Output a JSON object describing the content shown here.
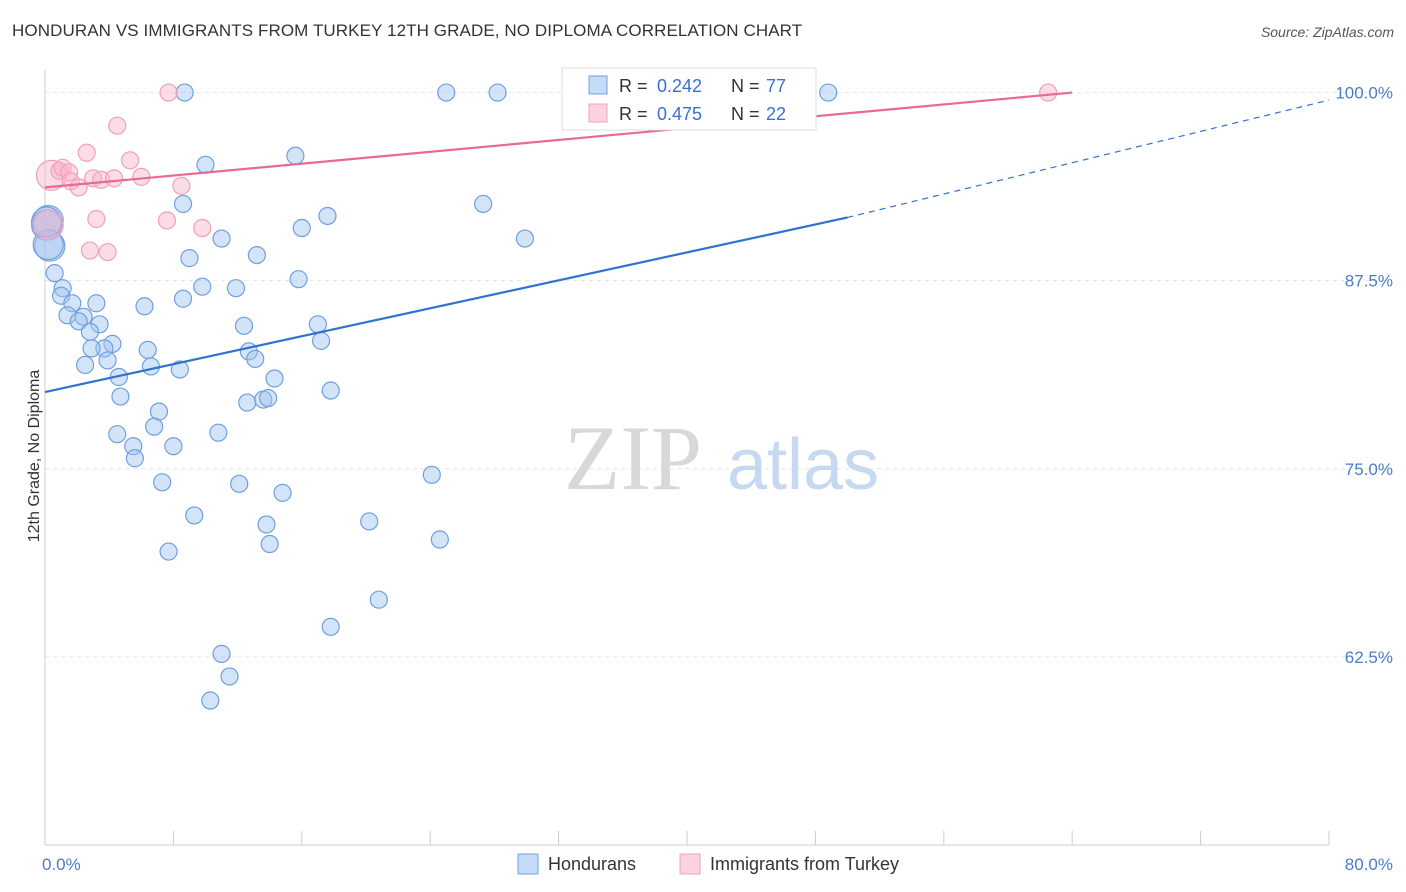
{
  "title": "HONDURAN VS IMMIGRANTS FROM TURKEY 12TH GRADE, NO DIPLOMA CORRELATION CHART",
  "source": "Source: ZipAtlas.com",
  "watermark": {
    "zip": "ZIP",
    "atlas": "atlas"
  },
  "colors": {
    "blue_fill": "rgba(160,195,240,0.45)",
    "blue_stroke": "#6f9fe0",
    "blue_line": "#2f72d0",
    "pink_fill": "rgba(248,180,200,0.45)",
    "pink_stroke": "#f0a0bc",
    "pink_line": "#e86a93",
    "tick_text": "#4a7cc9",
    "grid": "#e6e6e6"
  },
  "legend": {
    "r_label": "R =",
    "n_label": "N =",
    "rows": [
      {
        "r": "0.242",
        "n": "77",
        "series": "Hondurans"
      },
      {
        "r": "0.475",
        "n": "22",
        "series": "Immigrants from Turkey"
      }
    ]
  },
  "chart_data": {
    "type": "scatter",
    "title": "HONDURAN VS IMMIGRANTS FROM TURKEY 12TH GRADE, NO DIPLOMA CORRELATION CHART",
    "xlabel": "",
    "ylabel": "12th Grade, No Diploma",
    "xlim": [
      0,
      80
    ],
    "ylim": [
      50,
      101.5
    ],
    "x_tick_labels": [
      "0.0%",
      "80.0%"
    ],
    "y_ticks": [
      62.5,
      75.0,
      87.5,
      100.0
    ],
    "y_tick_labels": [
      "62.5%",
      "75.0%",
      "87.5%",
      "100.0%"
    ],
    "grid": true,
    "legend_position": "top-center",
    "series": [
      {
        "name": "Hondurans",
        "color": "#6f9fe0",
        "trend": {
          "x": [
            0,
            50
          ],
          "y": [
            80.1,
            91.7
          ],
          "dashed_to_x": 80,
          "dashed_y": 99.5
        },
        "points": [
          [
            0.2,
            91.5
          ],
          [
            0.3,
            89.8
          ],
          [
            0.6,
            88.0
          ],
          [
            1.1,
            87.0
          ],
          [
            1.0,
            86.5
          ],
          [
            1.7,
            86.0
          ],
          [
            3.2,
            86.0
          ],
          [
            6.2,
            85.8
          ],
          [
            1.4,
            85.2
          ],
          [
            2.4,
            85.1
          ],
          [
            2.1,
            84.8
          ],
          [
            3.4,
            84.6
          ],
          [
            2.8,
            84.1
          ],
          [
            4.2,
            83.3
          ],
          [
            3.7,
            83.0
          ],
          [
            2.9,
            83.0
          ],
          [
            6.4,
            82.9
          ],
          [
            3.9,
            82.2
          ],
          [
            2.5,
            81.9
          ],
          [
            6.6,
            81.8
          ],
          [
            8.4,
            81.6
          ],
          [
            4.6,
            81.1
          ],
          [
            4.7,
            79.8
          ],
          [
            7.1,
            78.8
          ],
          [
            6.8,
            77.8
          ],
          [
            4.5,
            77.3
          ],
          [
            5.5,
            76.5
          ],
          [
            8.0,
            76.5
          ],
          [
            5.6,
            75.7
          ],
          [
            7.3,
            74.1
          ],
          [
            9.3,
            71.9
          ],
          [
            7.7,
            69.5
          ],
          [
            8.7,
            100.0
          ],
          [
            25.0,
            100.0
          ],
          [
            28.2,
            100.0
          ],
          [
            41.8,
            100.0
          ],
          [
            48.8,
            100.0
          ],
          [
            10.0,
            95.2
          ],
          [
            15.6,
            95.8
          ],
          [
            8.6,
            92.6
          ],
          [
            11.0,
            90.3
          ],
          [
            9.0,
            89.0
          ],
          [
            9.8,
            87.1
          ],
          [
            8.6,
            86.3
          ],
          [
            13.2,
            89.2
          ],
          [
            11.9,
            87.0
          ],
          [
            15.8,
            87.6
          ],
          [
            17.6,
            91.8
          ],
          [
            16.0,
            91.0
          ],
          [
            12.4,
            84.5
          ],
          [
            17.0,
            84.6
          ],
          [
            17.2,
            83.5
          ],
          [
            12.7,
            82.8
          ],
          [
            13.1,
            82.3
          ],
          [
            14.3,
            81.0
          ],
          [
            17.8,
            80.2
          ],
          [
            12.6,
            79.4
          ],
          [
            13.6,
            79.6
          ],
          [
            13.9,
            79.7
          ],
          [
            10.8,
            77.4
          ],
          [
            12.1,
            74.0
          ],
          [
            14.8,
            73.4
          ],
          [
            13.8,
            71.3
          ],
          [
            14.0,
            70.0
          ],
          [
            20.2,
            71.5
          ],
          [
            24.1,
            74.6
          ],
          [
            24.6,
            70.3
          ],
          [
            27.3,
            92.6
          ],
          [
            29.9,
            90.3
          ],
          [
            20.8,
            66.3
          ],
          [
            17.8,
            64.5
          ],
          [
            11.0,
            62.7
          ],
          [
            11.5,
            61.2
          ],
          [
            10.3,
            59.6
          ],
          [
            0.1,
            91.2
          ],
          [
            0.2,
            89.9
          ],
          [
            0.1,
            91.4
          ]
        ]
      },
      {
        "name": "Immigrants from Turkey",
        "color": "#f0a0bc",
        "trend": {
          "x": [
            0,
            64
          ],
          "y": [
            93.7,
            100.0
          ]
        },
        "points": [
          [
            0.2,
            91.2
          ],
          [
            0.4,
            94.5
          ],
          [
            0.9,
            94.8
          ],
          [
            1.1,
            95.0
          ],
          [
            1.5,
            94.7
          ],
          [
            1.6,
            94.1
          ],
          [
            2.1,
            93.7
          ],
          [
            2.6,
            96.0
          ],
          [
            3.0,
            94.3
          ],
          [
            3.5,
            94.2
          ],
          [
            4.3,
            94.3
          ],
          [
            4.5,
            97.8
          ],
          [
            5.3,
            95.5
          ],
          [
            6.0,
            94.4
          ],
          [
            7.7,
            100.0
          ],
          [
            8.5,
            93.8
          ],
          [
            7.6,
            91.5
          ],
          [
            9.8,
            91.0
          ],
          [
            3.2,
            91.6
          ],
          [
            2.8,
            89.5
          ],
          [
            3.9,
            89.4
          ],
          [
            62.5,
            100.0
          ]
        ]
      }
    ]
  }
}
